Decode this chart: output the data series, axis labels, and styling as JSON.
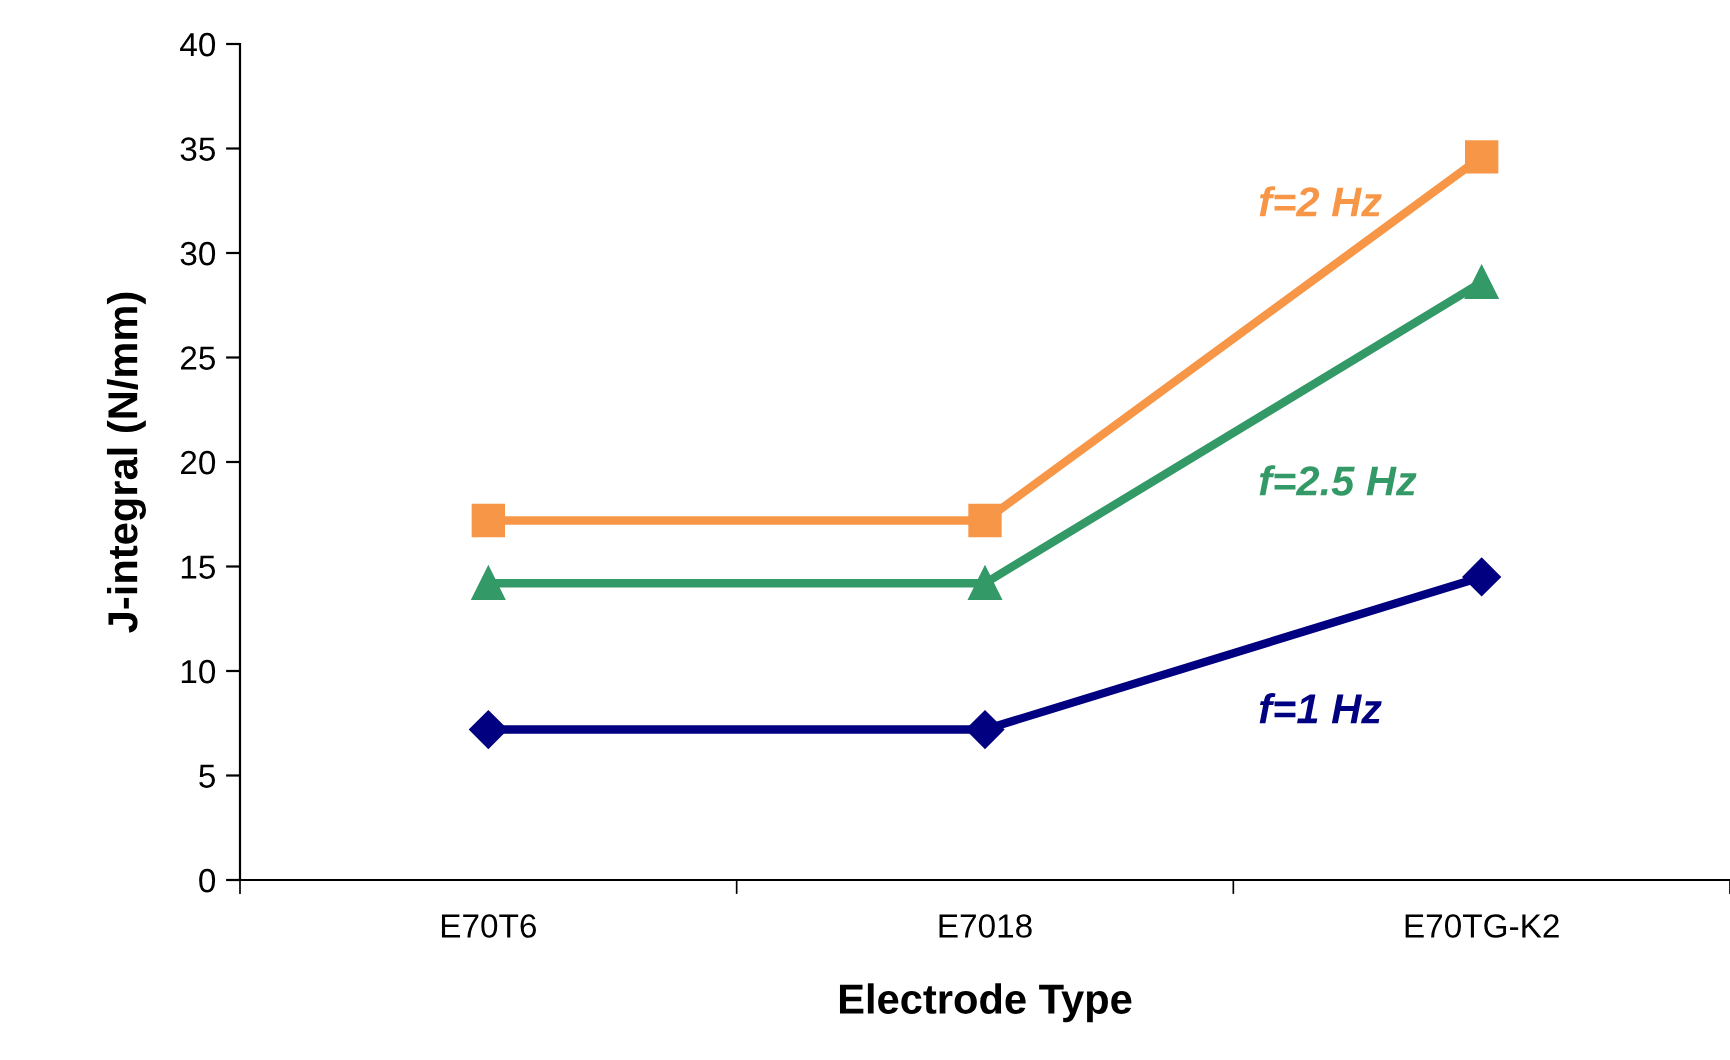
{
  "chart_data": {
    "type": "line",
    "xlabel": "Electrode Type",
    "ylabel": "J-integral (N/mm)",
    "categories": [
      "E70T6",
      "E7018",
      "E70TG-K2"
    ],
    "series": [
      {
        "name": "f=1 Hz",
        "color": "#000080",
        "marker": "diamond",
        "values": [
          7.2,
          7.2,
          14.5
        ]
      },
      {
        "name": "f=2.5 Hz",
        "color": "#339966",
        "marker": "triangle",
        "values": [
          14.2,
          14.2,
          28.6
        ]
      },
      {
        "name": "f=2 Hz",
        "color": "#f79646",
        "marker": "square",
        "values": [
          17.2,
          17.2,
          34.6
        ]
      }
    ],
    "ylim": [
      0,
      40
    ],
    "yticks": [
      0,
      5,
      10,
      15,
      20,
      25,
      30,
      35,
      40
    ],
    "grid": false,
    "legend": false
  }
}
